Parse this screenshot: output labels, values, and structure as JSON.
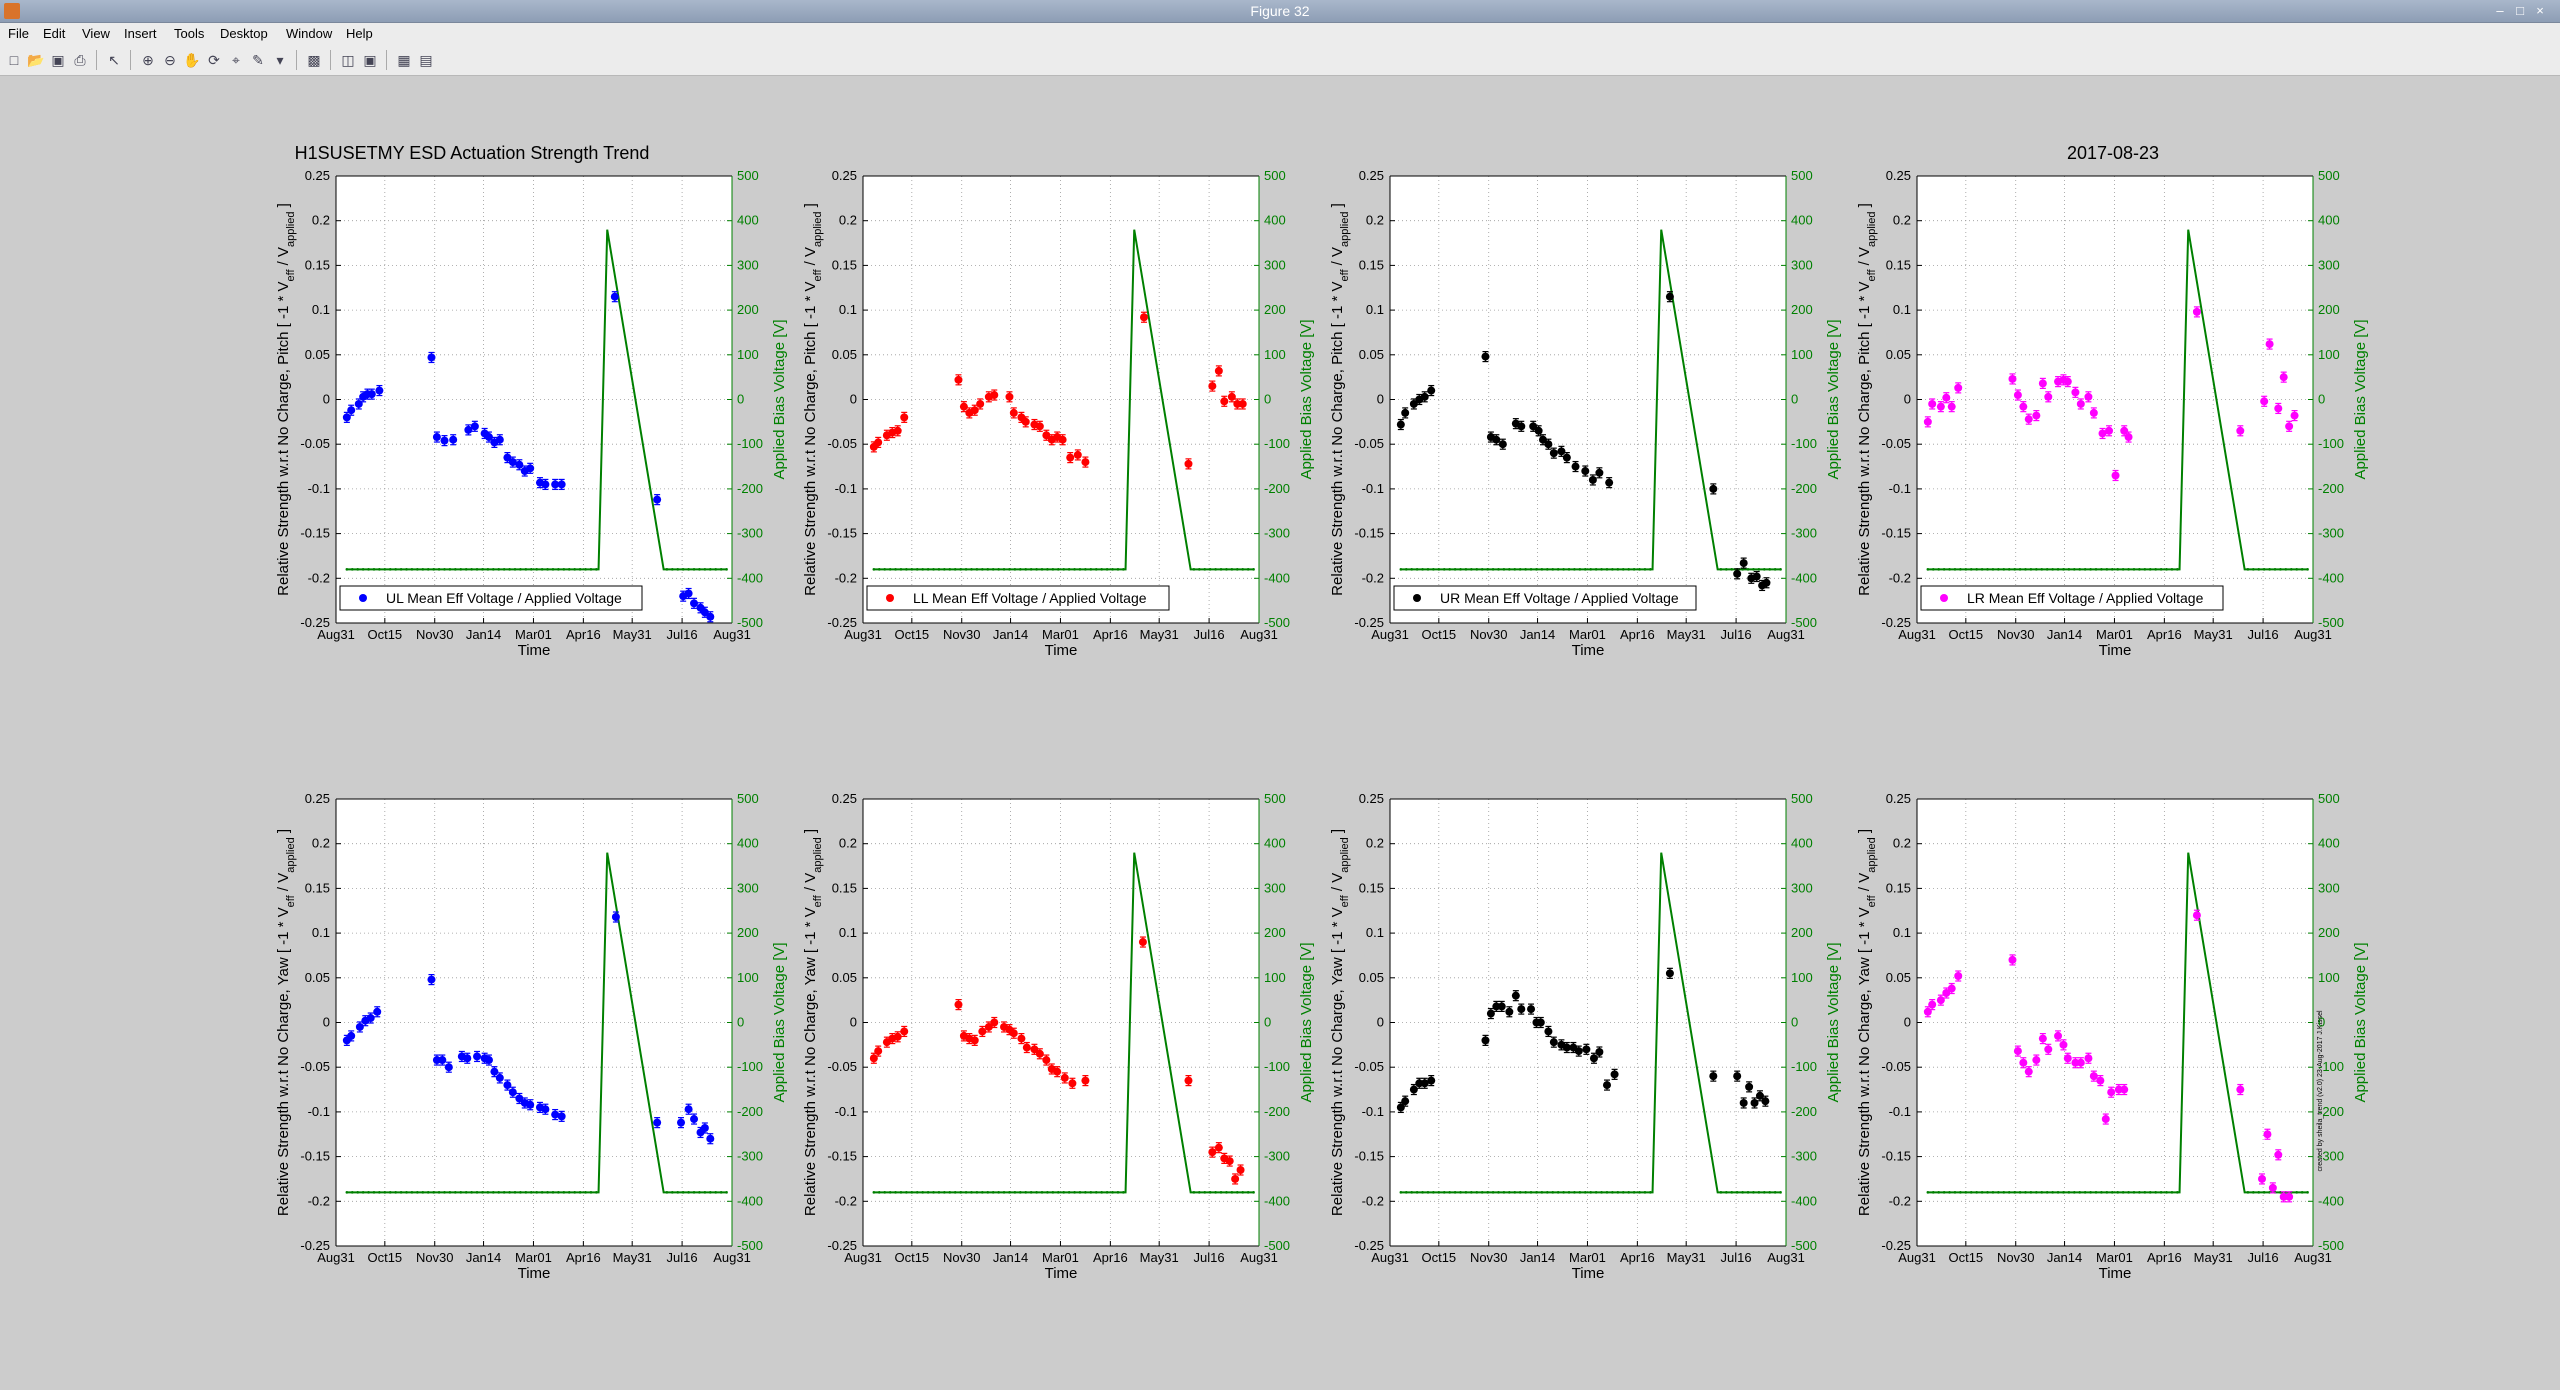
{
  "window": {
    "title": "Figure 32",
    "minimize": "–",
    "maximize": "□",
    "close": "×"
  },
  "menu": [
    "File",
    "Edit",
    "View",
    "Insert",
    "Tools",
    "Desktop",
    "Window",
    "Help"
  ],
  "toolbar": [
    "new-figure-icon",
    "open-file-icon",
    "save-icon",
    "print-icon",
    "select-arrow-icon",
    "zoom-in-icon",
    "zoom-out-icon",
    "pan-hand-icon",
    "rotate-icon",
    "data-cursor-icon",
    "brush-icon",
    "link-icon",
    "colorbar-icon",
    "legend-icon",
    "hide-plot-tools-icon",
    "show-plot-tools-icon"
  ],
  "colors": {
    "UL": "#0000ff",
    "LL": "#ff0000",
    "UR": "#000000",
    "LR": "#ff00ff",
    "bias": "#008000",
    "grid": "#9a9a9a"
  },
  "chart_data": {
    "type": "scatter",
    "figure_title": "H1SUSETMY ESD Actuation Strength Trend",
    "date_label": "2017-08-23",
    "xlabel": "Time",
    "ylabel_pitch": "Relative Strength w.r.t No Charge, Pitch [ -1 * V_eff / V_applied ]",
    "ylabel_yaw": "Relative Strength w.r.t No Charge, Yaw [ -1 * V_eff / V_applied ]",
    "ylabel_right": "Applied Bias Voltage [V]",
    "xticks": [
      "Aug31",
      "Oct15",
      "Nov30",
      "Jan14",
      "Mar01",
      "Apr16",
      "May31",
      "Jul16",
      "Aug31"
    ],
    "xticks_days": [
      0,
      45,
      91,
      136,
      182,
      228,
      273,
      319,
      365
    ],
    "xlim_days": [
      0,
      365
    ],
    "ylim": [
      -0.25,
      0.25
    ],
    "yticks": [
      -0.25,
      -0.2,
      -0.15,
      -0.1,
      -0.05,
      0,
      0.05,
      0.1,
      0.15,
      0.2,
      0.25
    ],
    "y2lim": [
      -500,
      500
    ],
    "y2ticks": [
      -500,
      -400,
      -300,
      -200,
      -100,
      0,
      100,
      200,
      300,
      400,
      500
    ],
    "credit": "created by sheila_trend (v2.0) 23-Aug-2017 J.Kissel",
    "bias_voltage": {
      "days": [
        10,
        242,
        250,
        302,
        360
      ],
      "values": [
        -380,
        -380,
        380,
        -380,
        -380
      ]
    },
    "panels": [
      {
        "name": "UL Mean Eff Voltage / Applied Voltage",
        "dof": "Pitch",
        "color": "UL",
        "points": [
          [
            10,
            -0.02
          ],
          [
            14,
            -0.012
          ],
          [
            21,
            -0.005
          ],
          [
            25,
            0.003
          ],
          [
            29,
            0.006
          ],
          [
            33,
            0.006
          ],
          [
            40,
            0.01
          ],
          [
            88,
            0.047
          ],
          [
            93,
            -0.042
          ],
          [
            100,
            -0.046
          ],
          [
            108,
            -0.045
          ],
          [
            122,
            -0.034
          ],
          [
            128,
            -0.03
          ],
          [
            137,
            -0.038
          ],
          [
            141,
            -0.042
          ],
          [
            146,
            -0.048
          ],
          [
            151,
            -0.045
          ],
          [
            158,
            -0.065
          ],
          [
            163,
            -0.07
          ],
          [
            169,
            -0.073
          ],
          [
            174,
            -0.08
          ],
          [
            179,
            -0.077
          ],
          [
            188,
            -0.093
          ],
          [
            193,
            -0.095
          ],
          [
            202,
            -0.095
          ],
          [
            208,
            -0.095
          ],
          [
            257,
            0.115
          ],
          [
            296,
            -0.112
          ],
          [
            320,
            -0.22
          ],
          [
            325,
            -0.217
          ],
          [
            330,
            -0.228
          ],
          [
            336,
            -0.233
          ],
          [
            340,
            -0.238
          ],
          [
            345,
            -0.243
          ]
        ]
      },
      {
        "name": "LL Mean Eff Voltage / Applied Voltage",
        "dof": "Pitch",
        "color": "LL",
        "points": [
          [
            10,
            -0.053
          ],
          [
            14,
            -0.048
          ],
          [
            22,
            -0.04
          ],
          [
            27,
            -0.037
          ],
          [
            32,
            -0.035
          ],
          [
            38,
            -0.02
          ],
          [
            88,
            0.022
          ],
          [
            93,
            -0.008
          ],
          [
            98,
            -0.015
          ],
          [
            103,
            -0.012
          ],
          [
            108,
            -0.005
          ],
          [
            116,
            0.003
          ],
          [
            121,
            0.005
          ],
          [
            135,
            0.003
          ],
          [
            139,
            -0.015
          ],
          [
            146,
            -0.02
          ],
          [
            150,
            -0.025
          ],
          [
            158,
            -0.028
          ],
          [
            163,
            -0.03
          ],
          [
            169,
            -0.04
          ],
          [
            174,
            -0.045
          ],
          [
            179,
            -0.042
          ],
          [
            184,
            -0.045
          ],
          [
            191,
            -0.065
          ],
          [
            198,
            -0.062
          ],
          [
            205,
            -0.07
          ],
          [
            259,
            0.092
          ],
          [
            300,
            -0.072
          ],
          [
            322,
            0.015
          ],
          [
            328,
            0.032
          ],
          [
            333,
            -0.002
          ],
          [
            340,
            0.003
          ],
          [
            345,
            -0.005
          ],
          [
            350,
            -0.005
          ]
        ]
      },
      {
        "name": "UR Mean Eff Voltage / Applied Voltage",
        "dof": "Pitch",
        "color": "UR",
        "points": [
          [
            10,
            -0.028
          ],
          [
            14,
            -0.015
          ],
          [
            22,
            -0.005
          ],
          [
            27,
            0.0
          ],
          [
            32,
            0.003
          ],
          [
            38,
            0.01
          ],
          [
            88,
            0.048
          ],
          [
            93,
            -0.042
          ],
          [
            98,
            -0.045
          ],
          [
            104,
            -0.05
          ],
          [
            116,
            -0.027
          ],
          [
            121,
            -0.03
          ],
          [
            132,
            -0.03
          ],
          [
            137,
            -0.035
          ],
          [
            141,
            -0.045
          ],
          [
            146,
            -0.05
          ],
          [
            151,
            -0.06
          ],
          [
            158,
            -0.058
          ],
          [
            163,
            -0.065
          ],
          [
            171,
            -0.075
          ],
          [
            180,
            -0.08
          ],
          [
            187,
            -0.09
          ],
          [
            193,
            -0.082
          ],
          [
            202,
            -0.093
          ],
          [
            258,
            0.115
          ],
          [
            298,
            -0.1
          ],
          [
            320,
            -0.195
          ],
          [
            326,
            -0.183
          ],
          [
            333,
            -0.2
          ],
          [
            338,
            -0.198
          ],
          [
            343,
            -0.208
          ],
          [
            347,
            -0.205
          ]
        ]
      },
      {
        "name": "LR Mean Eff Voltage / Applied Voltage",
        "dof": "Pitch",
        "color": "LR",
        "points": [
          [
            10,
            -0.025
          ],
          [
            14,
            -0.005
          ],
          [
            22,
            -0.008
          ],
          [
            27,
            0.002
          ],
          [
            32,
            -0.008
          ],
          [
            38,
            0.013
          ],
          [
            88,
            0.023
          ],
          [
            93,
            0.005
          ],
          [
            98,
            -0.008
          ],
          [
            103,
            -0.022
          ],
          [
            110,
            -0.018
          ],
          [
            116,
            0.018
          ],
          [
            121,
            0.003
          ],
          [
            130,
            0.02
          ],
          [
            135,
            0.022
          ],
          [
            139,
            0.02
          ],
          [
            146,
            0.008
          ],
          [
            151,
            -0.005
          ],
          [
            158,
            0.003
          ],
          [
            163,
            -0.015
          ],
          [
            171,
            -0.038
          ],
          [
            177,
            -0.035
          ],
          [
            183,
            -0.085
          ],
          [
            191,
            -0.035
          ],
          [
            195,
            -0.042
          ],
          [
            258,
            0.098
          ],
          [
            298,
            -0.035
          ],
          [
            320,
            -0.002
          ],
          [
            325,
            0.062
          ],
          [
            333,
            -0.01
          ],
          [
            338,
            0.025
          ],
          [
            343,
            -0.03
          ],
          [
            348,
            -0.018
          ]
        ]
      },
      {
        "name": "UL Mean Eff Voltage / Applied Voltage",
        "dof": "Yaw",
        "color": "UL",
        "points": [
          [
            10,
            -0.02
          ],
          [
            14,
            -0.015
          ],
          [
            22,
            -0.005
          ],
          [
            27,
            0.002
          ],
          [
            32,
            0.005
          ],
          [
            38,
            0.012
          ],
          [
            88,
            0.048
          ],
          [
            93,
            -0.042
          ],
          [
            98,
            -0.042
          ],
          [
            104,
            -0.05
          ],
          [
            116,
            -0.038
          ],
          [
            121,
            -0.04
          ],
          [
            130,
            -0.038
          ],
          [
            137,
            -0.04
          ],
          [
            141,
            -0.042
          ],
          [
            146,
            -0.055
          ],
          [
            151,
            -0.062
          ],
          [
            158,
            -0.07
          ],
          [
            163,
            -0.078
          ],
          [
            169,
            -0.085
          ],
          [
            174,
            -0.09
          ],
          [
            179,
            -0.092
          ],
          [
            188,
            -0.095
          ],
          [
            193,
            -0.097
          ],
          [
            202,
            -0.103
          ],
          [
            208,
            -0.105
          ],
          [
            258,
            0.118
          ],
          [
            296,
            -0.112
          ],
          [
            318,
            -0.112
          ],
          [
            325,
            -0.097
          ],
          [
            330,
            -0.108
          ],
          [
            336,
            -0.123
          ],
          [
            340,
            -0.118
          ],
          [
            345,
            -0.13
          ]
        ]
      },
      {
        "name": "LL Mean Eff Voltage / Applied Voltage",
        "dof": "Yaw",
        "color": "LL",
        "points": [
          [
            10,
            -0.04
          ],
          [
            14,
            -0.032
          ],
          [
            22,
            -0.022
          ],
          [
            27,
            -0.018
          ],
          [
            32,
            -0.016
          ],
          [
            38,
            -0.01
          ],
          [
            88,
            0.02
          ],
          [
            93,
            -0.015
          ],
          [
            98,
            -0.018
          ],
          [
            103,
            -0.02
          ],
          [
            110,
            -0.01
          ],
          [
            116,
            -0.005
          ],
          [
            121,
            0.0
          ],
          [
            130,
            -0.005
          ],
          [
            135,
            -0.008
          ],
          [
            139,
            -0.012
          ],
          [
            146,
            -0.018
          ],
          [
            151,
            -0.028
          ],
          [
            158,
            -0.03
          ],
          [
            163,
            -0.035
          ],
          [
            169,
            -0.042
          ],
          [
            174,
            -0.052
          ],
          [
            179,
            -0.055
          ],
          [
            186,
            -0.062
          ],
          [
            193,
            -0.068
          ],
          [
            205,
            -0.065
          ],
          [
            258,
            0.09
          ],
          [
            300,
            -0.065
          ],
          [
            322,
            -0.145
          ],
          [
            328,
            -0.14
          ],
          [
            333,
            -0.152
          ],
          [
            338,
            -0.155
          ],
          [
            343,
            -0.175
          ],
          [
            348,
            -0.165
          ]
        ]
      },
      {
        "name": "UR Mean Eff Voltage / Applied Voltage",
        "dof": "Yaw",
        "color": "UR",
        "points": [
          [
            10,
            -0.095
          ],
          [
            14,
            -0.088
          ],
          [
            22,
            -0.075
          ],
          [
            27,
            -0.068
          ],
          [
            32,
            -0.068
          ],
          [
            38,
            -0.065
          ],
          [
            88,
            -0.02
          ],
          [
            93,
            0.01
          ],
          [
            98,
            0.018
          ],
          [
            103,
            0.018
          ],
          [
            110,
            0.012
          ],
          [
            116,
            0.03
          ],
          [
            121,
            0.015
          ],
          [
            130,
            0.015
          ],
          [
            135,
            0.0
          ],
          [
            139,
            0.0
          ],
          [
            146,
            -0.01
          ],
          [
            151,
            -0.022
          ],
          [
            158,
            -0.025
          ],
          [
            163,
            -0.028
          ],
          [
            169,
            -0.028
          ],
          [
            174,
            -0.032
          ],
          [
            181,
            -0.03
          ],
          [
            188,
            -0.04
          ],
          [
            193,
            -0.033
          ],
          [
            200,
            -0.07
          ],
          [
            207,
            -0.058
          ],
          [
            258,
            0.055
          ],
          [
            298,
            -0.06
          ],
          [
            320,
            -0.06
          ],
          [
            326,
            -0.09
          ],
          [
            331,
            -0.072
          ],
          [
            336,
            -0.09
          ],
          [
            341,
            -0.082
          ],
          [
            346,
            -0.088
          ]
        ]
      },
      {
        "name": "LR Mean Eff Voltage / Applied Voltage",
        "dof": "Yaw",
        "color": "LR",
        "points": [
          [
            10,
            0.012
          ],
          [
            14,
            0.02
          ],
          [
            22,
            0.025
          ],
          [
            27,
            0.033
          ],
          [
            32,
            0.038
          ],
          [
            38,
            0.052
          ],
          [
            88,
            0.07
          ],
          [
            93,
            -0.032
          ],
          [
            98,
            -0.045
          ],
          [
            103,
            -0.055
          ],
          [
            110,
            -0.042
          ],
          [
            116,
            -0.018
          ],
          [
            121,
            -0.03
          ],
          [
            130,
            -0.015
          ],
          [
            135,
            -0.025
          ],
          [
            139,
            -0.04
          ],
          [
            146,
            -0.045
          ],
          [
            151,
            -0.045
          ],
          [
            158,
            -0.04
          ],
          [
            163,
            -0.06
          ],
          [
            169,
            -0.065
          ],
          [
            174,
            -0.108
          ],
          [
            179,
            -0.078
          ],
          [
            186,
            -0.075
          ],
          [
            191,
            -0.075
          ],
          [
            258,
            0.12
          ],
          [
            298,
            -0.075
          ],
          [
            318,
            -0.175
          ],
          [
            323,
            -0.125
          ],
          [
            328,
            -0.185
          ],
          [
            333,
            -0.148
          ],
          [
            338,
            -0.195
          ],
          [
            343,
            -0.195
          ]
        ]
      }
    ]
  }
}
